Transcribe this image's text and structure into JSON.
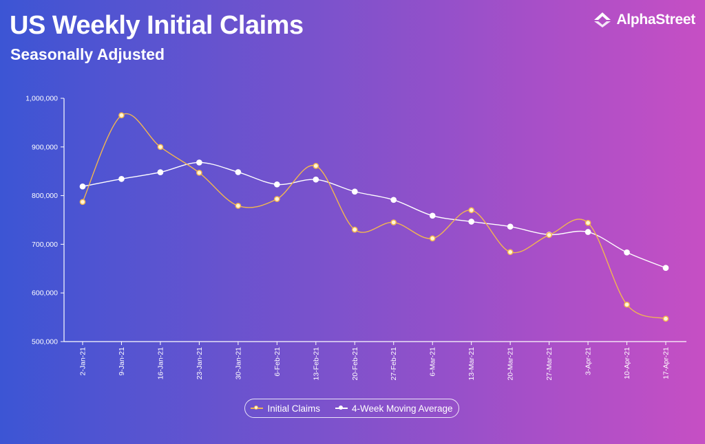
{
  "header": {
    "title": "US Weekly Initial Claims",
    "subtitle": "Seasonally Adjusted",
    "brand": "AlphaStreet",
    "brand_icon": "alphastreet-logo-icon"
  },
  "colors": {
    "claims": "#f2b64f",
    "average": "#ffffff",
    "axis": "#ffffff"
  },
  "chart_data": {
    "type": "line",
    "title": "US Weekly Initial Claims",
    "subtitle": "Seasonally Adjusted",
    "xlabel": "",
    "ylabel": "",
    "categories": [
      "2-Jan-21",
      "9-Jan-21",
      "16-Jan-21",
      "23-Jan-21",
      "30-Jan-21",
      "6-Feb-21",
      "13-Feb-21",
      "20-Feb-21",
      "27-Feb-21",
      "6-Mar-21",
      "13-Mar-21",
      "20-Mar-21",
      "27-Mar-21",
      "3-Apr-21",
      "10-Apr-21",
      "17-Apr-21"
    ],
    "series": [
      {
        "name": "Initial Claims",
        "values": [
          787000,
          965000,
          900000,
          847000,
          779000,
          793000,
          861000,
          730000,
          745000,
          712000,
          770000,
          684000,
          719000,
          744000,
          576000,
          547000
        ]
      },
      {
        "name": "4-Week Moving Average",
        "values": [
          818750,
          834250,
          848000,
          868000,
          848250,
          823000,
          833000,
          808250,
          791250,
          758750,
          746500,
          736250,
          719750,
          725250,
          683250,
          651500
        ]
      }
    ],
    "yticks": [
      "1,000,000",
      "900,000",
      "800,000",
      "700,000",
      "600,000",
      "500,000"
    ],
    "ylim": [
      500000,
      1000000
    ],
    "grid": false,
    "legend": "bottom-center"
  }
}
